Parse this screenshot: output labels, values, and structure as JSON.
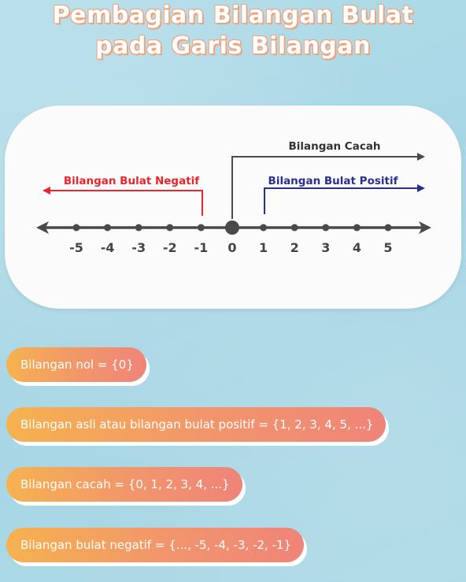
{
  "title": {
    "line1": "Pembagian Bilangan Bulat",
    "line2": "pada Garis Bilangan"
  },
  "number_line": {
    "ticks": [
      "-5",
      "-4",
      "-3",
      "-2",
      "-1",
      "0",
      "1",
      "2",
      "3",
      "4",
      "5"
    ],
    "labels": {
      "cacah": "Bilangan Cacah",
      "negatif": "Bilangan Bulat Negatif",
      "positif": "Bilangan Bulat Positif"
    },
    "colors": {
      "axis": "#4a4a4a",
      "negatif": "#e8262b",
      "positif": "#2a2f8f",
      "cacah": "#333333"
    }
  },
  "definitions": [
    "Bilangan nol = {0}",
    "Bilangan asli atau bilangan bulat positif = {1, 2, 3, 4, 5, ...}",
    "Bilangan cacah = {0, 1, 2, 3, 4, ...}",
    "Bilangan bulat negatif = {..., -5, -4, -3, -2, -1}"
  ],
  "colors": {
    "background": "#a9d8e6",
    "pill_start": "#f6b24f",
    "pill_end": "#ef8479"
  }
}
